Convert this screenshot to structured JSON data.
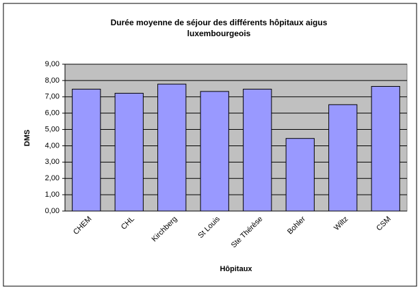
{
  "chart_data": {
    "type": "bar",
    "title": [
      "Durée moyenne de séjour des différents hôpitaux aigus",
      "luxembourgeois"
    ],
    "categories": [
      "CHEM",
      "CHL",
      "Kirchberg",
      "St Louis",
      "Ste Thérèse",
      "Bohler",
      "Wiltz",
      "CSM"
    ],
    "values": [
      7.47,
      7.22,
      7.78,
      7.33,
      7.47,
      4.45,
      6.52,
      7.64
    ],
    "color": "#9999ff",
    "ylabel": "DMS",
    "xlabel": "Hôpitaux",
    "ylim": [
      0,
      9
    ],
    "yticks": [
      {
        "value": 0,
        "label": "0,00"
      },
      {
        "value": 1,
        "label": "1,00"
      },
      {
        "value": 2,
        "label": "2,00"
      },
      {
        "value": 3,
        "label": "3,00"
      },
      {
        "value": 4,
        "label": "4,00"
      },
      {
        "value": 5,
        "label": "5,00"
      },
      {
        "value": 6,
        "label": "6,00"
      },
      {
        "value": 7,
        "label": "7,00"
      },
      {
        "value": 8,
        "label": "8,00"
      },
      {
        "value": 9,
        "label": "9,00"
      }
    ],
    "grid": true
  }
}
